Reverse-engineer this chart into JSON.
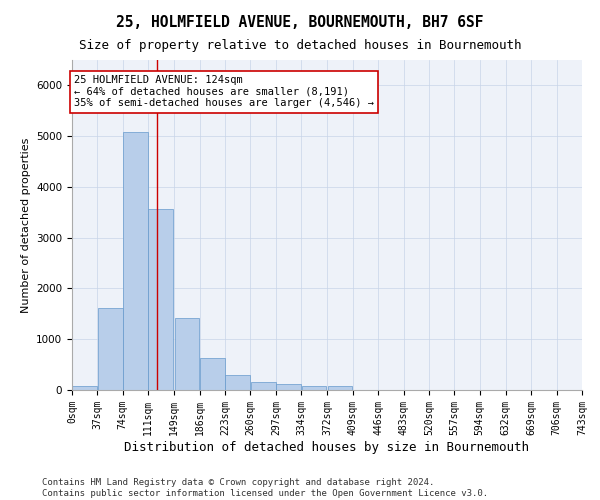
{
  "title": "25, HOLMFIELD AVENUE, BOURNEMOUTH, BH7 6SF",
  "subtitle": "Size of property relative to detached houses in Bournemouth",
  "xlabel": "Distribution of detached houses by size in Bournemouth",
  "ylabel": "Number of detached properties",
  "footer_line1": "Contains HM Land Registry data © Crown copyright and database right 2024.",
  "footer_line2": "Contains public sector information licensed under the Open Government Licence v3.0.",
  "bin_edges": [
    0,
    37,
    74,
    111,
    149,
    186,
    223,
    260,
    297,
    334,
    372,
    409,
    446,
    483,
    520,
    557,
    594,
    632,
    669,
    706,
    743
  ],
  "bar_values": [
    75,
    1625,
    5075,
    3575,
    1425,
    625,
    300,
    150,
    125,
    75,
    75,
    0,
    0,
    0,
    0,
    0,
    0,
    0,
    0,
    0
  ],
  "bar_color": "#b8ceea",
  "bar_edge_color": "#6699cc",
  "grid_color": "#c8d4e8",
  "background_color": "#eef2f9",
  "property_size": 124,
  "vline_color": "#cc0000",
  "annotation_line1": "25 HOLMFIELD AVENUE: 124sqm",
  "annotation_line2": "← 64% of detached houses are smaller (8,191)",
  "annotation_line3": "35% of semi-detached houses are larger (4,546) →",
  "annotation_box_color": "#ffffff",
  "annotation_box_edge": "#cc0000",
  "ylim": [
    0,
    6500
  ],
  "xlim": [
    0,
    743
  ],
  "tick_labels": [
    "0sqm",
    "37sqm",
    "74sqm",
    "111sqm",
    "149sqm",
    "186sqm",
    "223sqm",
    "260sqm",
    "297sqm",
    "334sqm",
    "372sqm",
    "409sqm",
    "446sqm",
    "483sqm",
    "520sqm",
    "557sqm",
    "594sqm",
    "632sqm",
    "669sqm",
    "706sqm",
    "743sqm"
  ],
  "title_fontsize": 10.5,
  "subtitle_fontsize": 9,
  "xlabel_fontsize": 9,
  "ylabel_fontsize": 8,
  "tick_fontsize": 7,
  "annotation_fontsize": 7.5,
  "footer_fontsize": 6.5
}
